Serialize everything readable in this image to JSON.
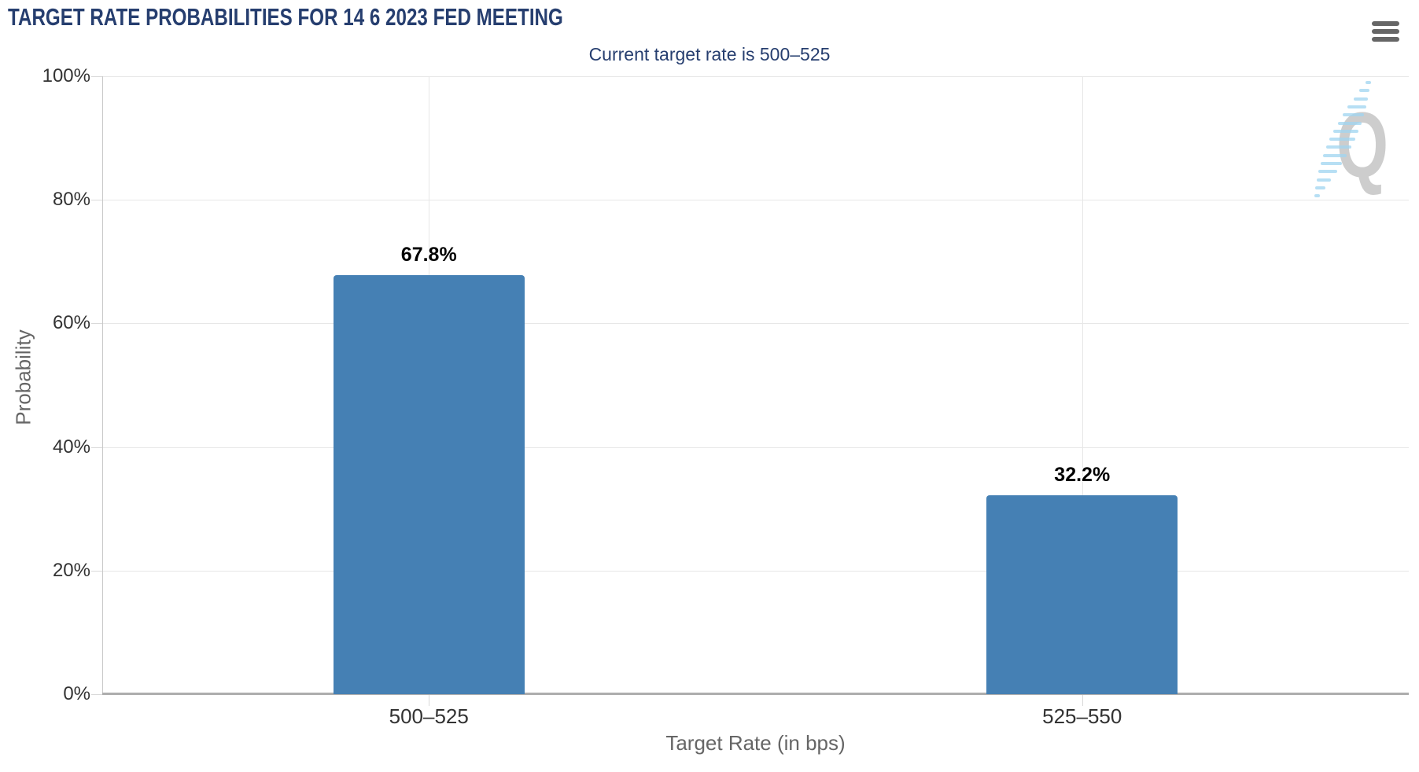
{
  "chart_data": {
    "type": "bar",
    "title": "TARGET RATE PROBABILITIES FOR 14 6 2023 FED MEETING",
    "subtitle": "Current target rate is 500–525",
    "categories": [
      "500–525",
      "525–550"
    ],
    "values": [
      67.8,
      32.2
    ],
    "value_labels": [
      "67.8%",
      "32.2%"
    ],
    "xlabel": "Target Rate (in bps)",
    "ylabel": "Probability",
    "ylim": [
      0,
      100
    ],
    "ytick_labels": [
      "0%",
      "20%",
      "40%",
      "60%",
      "80%",
      "100%"
    ],
    "grid": true,
    "legend_position": "none",
    "bar_color": "#4580b4"
  },
  "toolbar": {
    "context_menu_icon": "hamburger-menu-icon"
  },
  "watermark": {
    "letter": "Q"
  },
  "colors": {
    "title_text": "#263e6f",
    "bar_fill": "#4580b4",
    "gridline": "#e7e7e7",
    "y_axis_line": "#c9c9c9",
    "x_axis_line": "#adadad",
    "tick_label_text": "#333333",
    "axis_title_text": "#666666",
    "menu_icon": "#666666",
    "watermark_q": "#c8c8c8",
    "watermark_dash": "#9fd4f0"
  }
}
